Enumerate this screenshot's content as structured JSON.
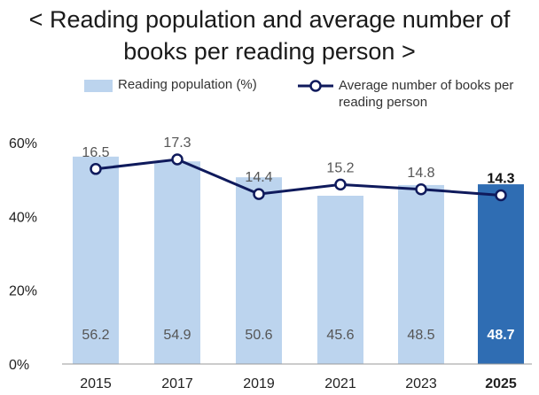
{
  "title": "< Reading population and average number of books per reading person >",
  "colors": {
    "bar": "#bcd4ee",
    "bar_highlight": "#2f6db3",
    "line": "#0f1a5c",
    "grid": "#cccccc",
    "text_muted": "#555555",
    "text_strong": "#111111"
  },
  "chart_data": {
    "type": "bar",
    "categories": [
      "2015",
      "2017",
      "2019",
      "2021",
      "2023",
      "2025"
    ],
    "series": [
      {
        "name": "Reading population (%)",
        "type": "bar",
        "values": [
          56.2,
          54.9,
          50.6,
          45.6,
          48.5,
          48.7
        ]
      },
      {
        "name": "Average number of books per reading person",
        "type": "line",
        "values": [
          16.5,
          17.3,
          14.4,
          15.2,
          14.8,
          14.3
        ]
      }
    ],
    "highlight_category": "2025",
    "ylim": [
      0,
      60
    ],
    "yticks": [
      0,
      20,
      40,
      60
    ],
    "ytick_labels": [
      "0%",
      "20%",
      "40%",
      "60%"
    ],
    "legend_position": "top",
    "grid": false
  }
}
